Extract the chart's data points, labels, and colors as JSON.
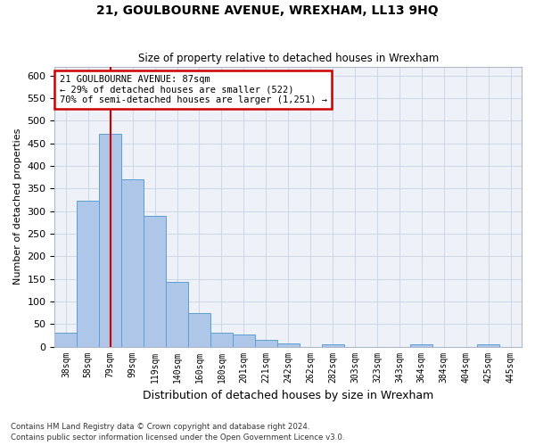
{
  "title": "21, GOULBOURNE AVENUE, WREXHAM, LL13 9HQ",
  "subtitle": "Size of property relative to detached houses in Wrexham",
  "xlabel": "Distribution of detached houses by size in Wrexham",
  "ylabel": "Number of detached properties",
  "footnote1": "Contains HM Land Registry data © Crown copyright and database right 2024.",
  "footnote2": "Contains public sector information licensed under the Open Government Licence v3.0.",
  "categories": [
    "38sqm",
    "58sqm",
    "79sqm",
    "99sqm",
    "119sqm",
    "140sqm",
    "160sqm",
    "180sqm",
    "201sqm",
    "221sqm",
    "242sqm",
    "262sqm",
    "282sqm",
    "303sqm",
    "323sqm",
    "343sqm",
    "364sqm",
    "384sqm",
    "404sqm",
    "425sqm",
    "445sqm"
  ],
  "values": [
    30,
    322,
    472,
    370,
    290,
    143,
    75,
    30,
    27,
    15,
    8,
    0,
    5,
    0,
    0,
    0,
    5,
    0,
    0,
    5,
    0
  ],
  "bar_color": "#aec6e8",
  "bar_edge_color": "#5a9fd4",
  "property_line_bin_index": 2,
  "annotation_title": "21 GOULBOURNE AVENUE: 87sqm",
  "annotation_line1": "← 29% of detached houses are smaller (522)",
  "annotation_line2": "70% of semi-detached houses are larger (1,251) →",
  "annotation_box_color": "#ffffff",
  "annotation_box_edge": "#cc0000",
  "red_line_color": "#cc0000",
  "grid_color": "#d0d8e8",
  "bg_color": "#eef2f8",
  "ylim": [
    0,
    620
  ],
  "yticks": [
    0,
    50,
    100,
    150,
    200,
    250,
    300,
    350,
    400,
    450,
    500,
    550,
    600
  ]
}
